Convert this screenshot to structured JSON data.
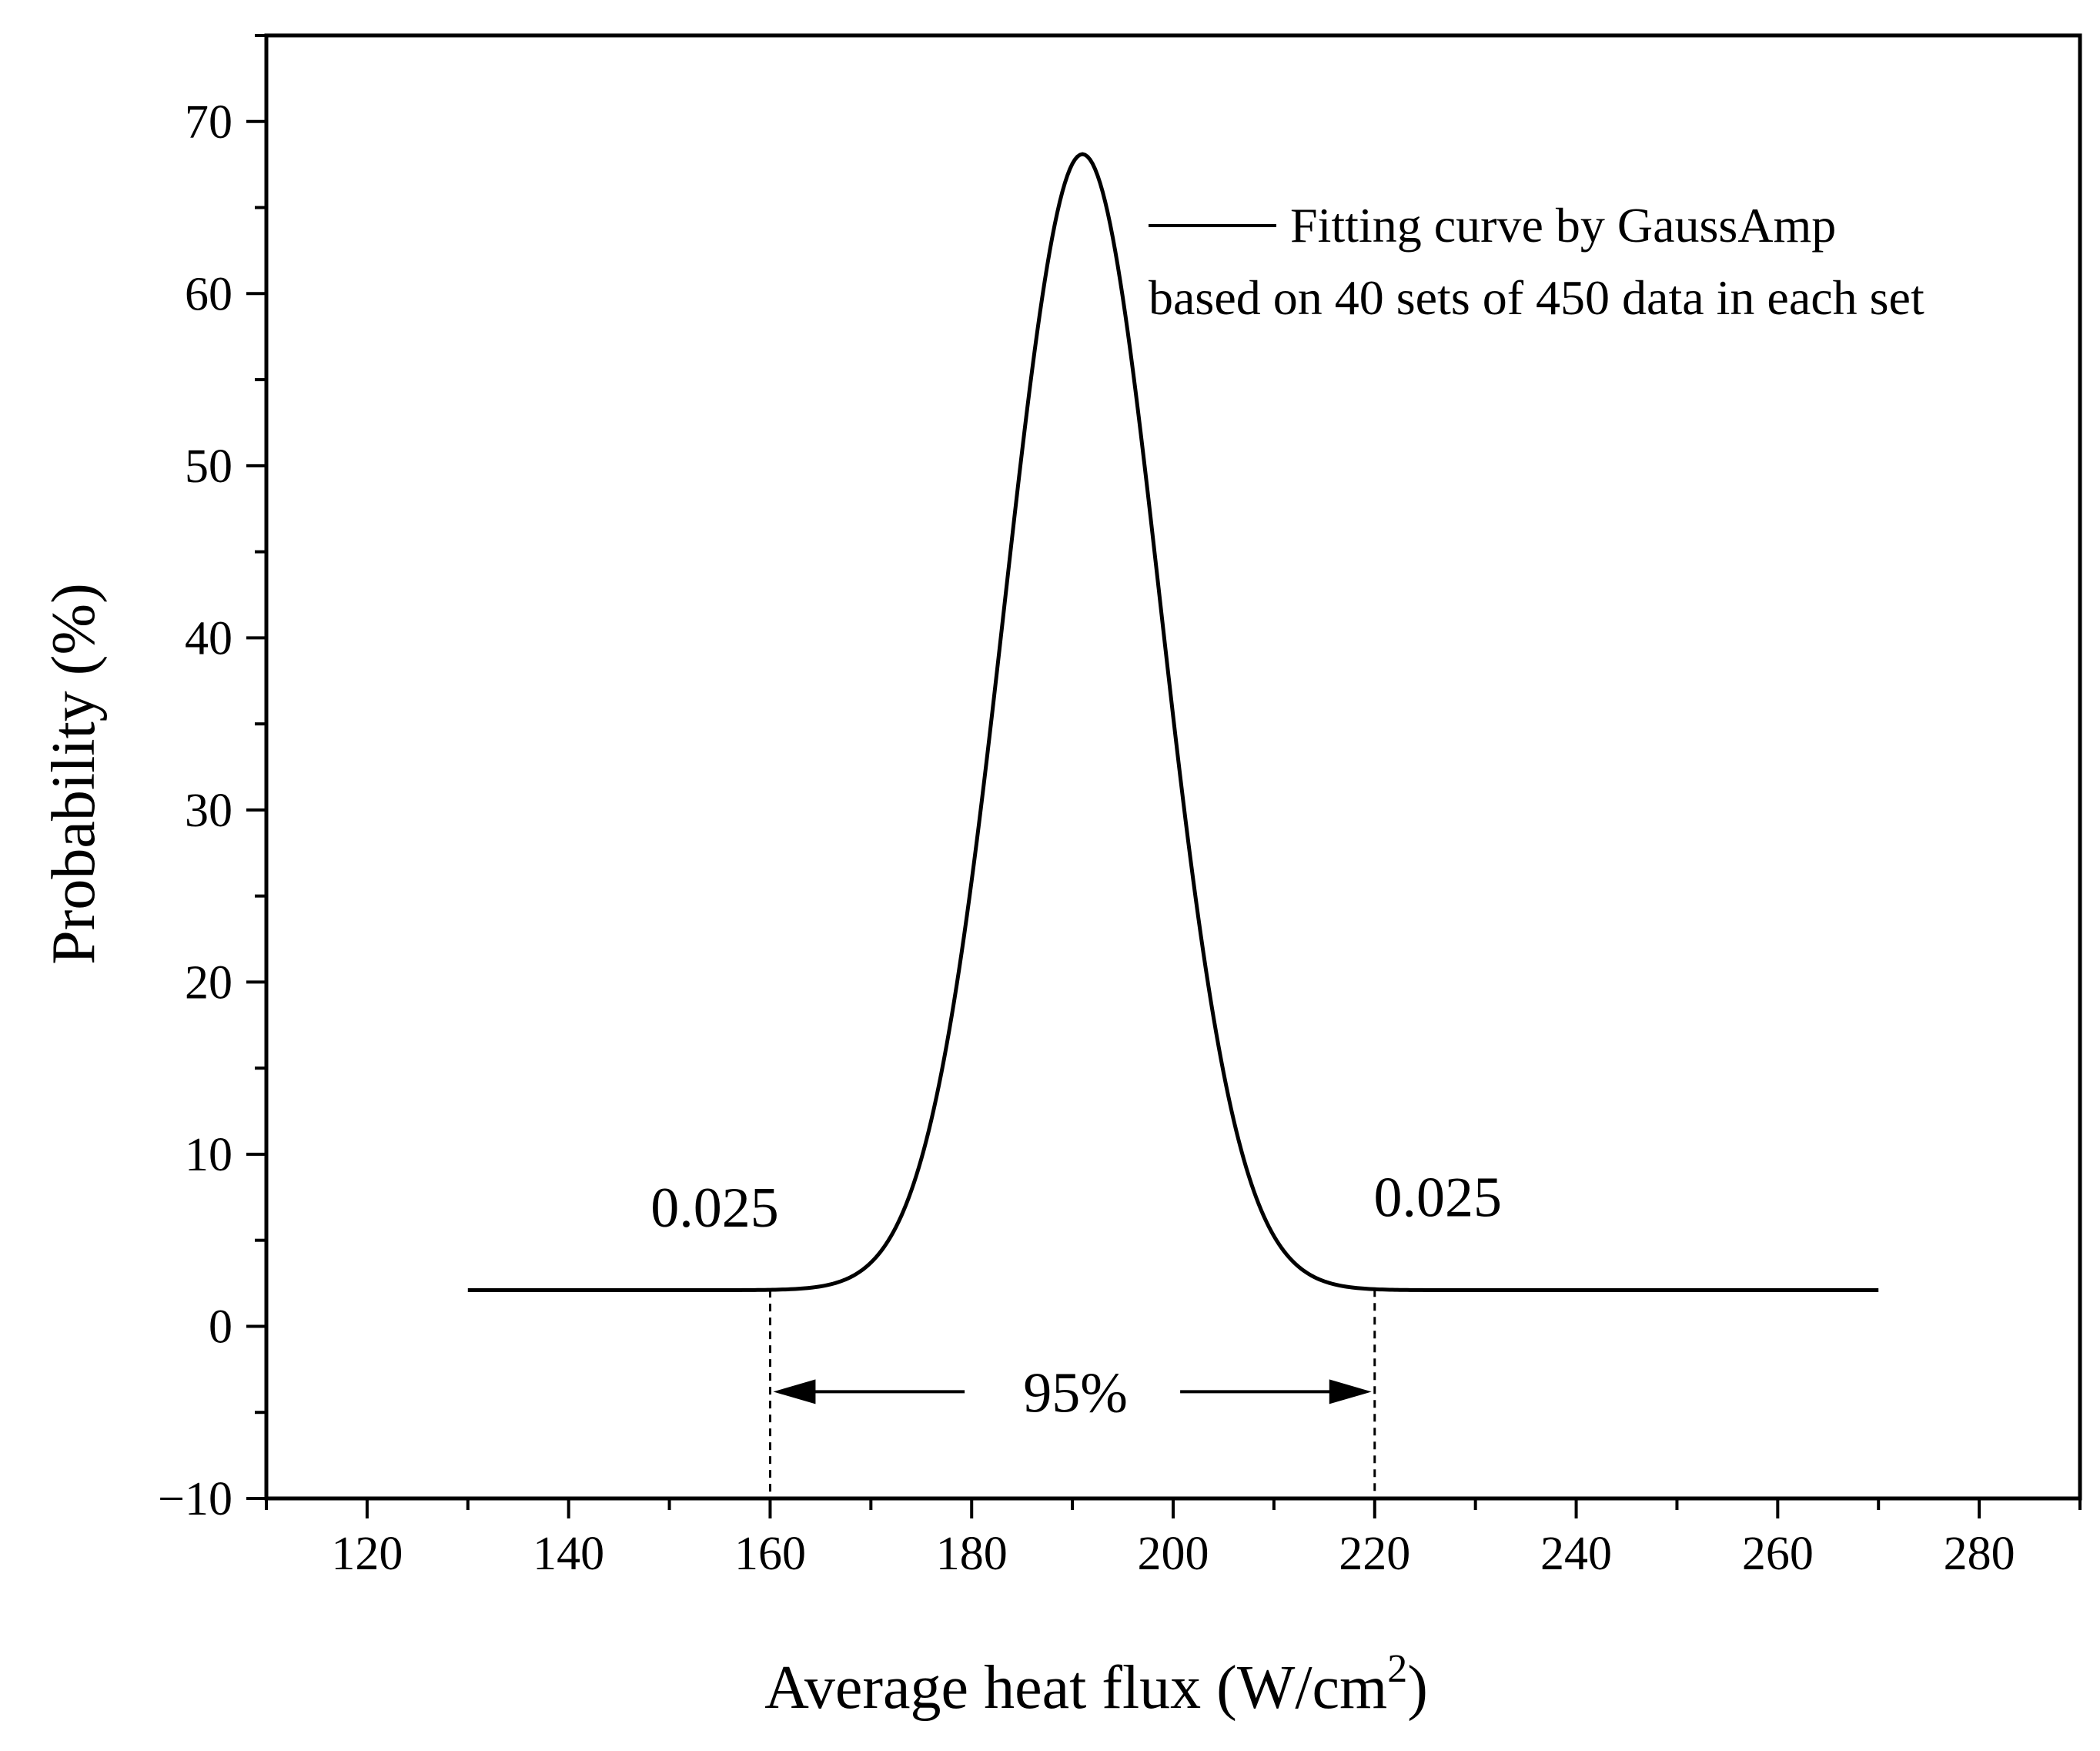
{
  "chart_data": {
    "type": "line",
    "title": "",
    "xlabel": "Average heat flux (W/cm",
    "xlabel_sup": "2",
    "xlabel_close": ")",
    "ylabel": "Probability (%)",
    "xlim": [
      110,
      290
    ],
    "ylim": [
      -10,
      75
    ],
    "xticks": [
      120,
      140,
      160,
      180,
      200,
      220,
      240,
      260,
      280
    ],
    "xtick_labels": [
      "120",
      "140",
      "160",
      "180",
      "200",
      "220",
      "240",
      "260",
      "280"
    ],
    "yticks": [
      -10,
      0,
      10,
      20,
      30,
      40,
      50,
      60,
      70
    ],
    "ytick_labels": [
      "−10",
      "0",
      "10",
      "20",
      "30",
      "40",
      "50",
      "60",
      "70"
    ],
    "grid": false,
    "series": [
      {
        "name": "Fitting curve by GaussAmp",
        "model": "GaussAmp",
        "x_range": [
          130,
          270
        ],
        "y0": 2.1,
        "amplitude": 66.0,
        "center": 191.0,
        "width": 7.7,
        "color": "#000000"
      }
    ],
    "legend": {
      "position": "top-right",
      "line1": "Fitting curve by GaussAmp",
      "line2": "based on 40 sets of 450 data in each set"
    },
    "annotations": {
      "left_tail_label": "0.025",
      "right_tail_label": "0.025",
      "interval_label": "95%",
      "interval_bounds": [
        160,
        220
      ]
    }
  }
}
